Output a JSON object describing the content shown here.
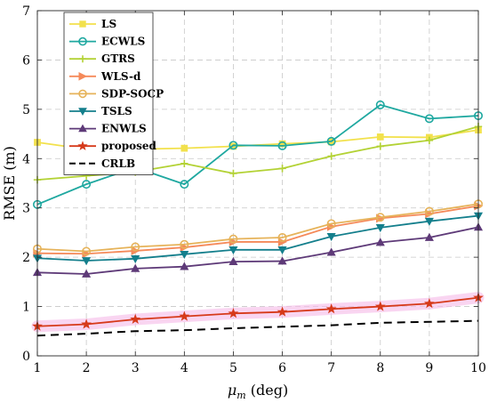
{
  "chart_data": {
    "type": "line",
    "xlabel_main": "μ",
    "xlabel_sub": "m",
    "xlabel_rest": " (deg)",
    "ylabel": "RMSE (m)",
    "x": [
      1,
      2,
      3,
      4,
      5,
      6,
      7,
      8,
      9,
      10
    ],
    "xlim": [
      1,
      10
    ],
    "ylim": [
      0,
      7
    ],
    "xticks": [
      "1",
      "2",
      "3",
      "4",
      "5",
      "6",
      "7",
      "8",
      "9",
      "10"
    ],
    "yticks": [
      "0",
      "1",
      "2",
      "3",
      "4",
      "5",
      "6",
      "7"
    ],
    "grid": true,
    "legend_position": "top-left",
    "series": [
      {
        "name": "LS",
        "color": "#f2e14c",
        "marker": "square",
        "dash": "solid",
        "values": [
          4.33,
          4.19,
          4.19,
          4.21,
          4.25,
          4.3,
          4.34,
          4.44,
          4.43,
          4.58
        ]
      },
      {
        "name": "ECWLS",
        "color": "#1fa8a0",
        "marker": "circle",
        "dash": "solid",
        "values": [
          3.07,
          3.48,
          3.82,
          3.48,
          4.27,
          4.26,
          4.35,
          5.09,
          4.81,
          4.87
        ]
      },
      {
        "name": "GTRS",
        "color": "#b3d235",
        "marker": "plus",
        "dash": "solid",
        "values": [
          3.57,
          3.65,
          3.73,
          3.9,
          3.7,
          3.8,
          4.05,
          4.25,
          4.37,
          4.65
        ]
      },
      {
        "name": "WLS-d",
        "color": "#f58a5a",
        "marker": "triangle-right",
        "dash": "solid",
        "values": [
          2.08,
          2.07,
          2.13,
          2.2,
          2.31,
          2.31,
          2.62,
          2.79,
          2.88,
          3.04
        ]
      },
      {
        "name": "SDP-SOCP",
        "color": "#e6b35a",
        "marker": "circle",
        "dash": "solid",
        "values": [
          2.17,
          2.12,
          2.21,
          2.26,
          2.37,
          2.4,
          2.68,
          2.81,
          2.93,
          3.08
        ]
      },
      {
        "name": "TSLS",
        "color": "#147f8c",
        "marker": "triangle-down",
        "dash": "solid",
        "values": [
          1.98,
          1.93,
          1.97,
          2.06,
          2.15,
          2.15,
          2.42,
          2.6,
          2.73,
          2.84
        ]
      },
      {
        "name": "ENWLS",
        "color": "#5e3a78",
        "marker": "triangle-up",
        "dash": "solid",
        "values": [
          1.69,
          1.66,
          1.77,
          1.81,
          1.91,
          1.92,
          2.1,
          2.3,
          2.4,
          2.61
        ]
      },
      {
        "name": "proposed",
        "color": "#d63a1a",
        "marker": "star",
        "dash": "solid",
        "values": [
          0.6,
          0.64,
          0.74,
          0.8,
          0.86,
          0.89,
          0.95,
          1.0,
          1.06,
          1.18
        ]
      },
      {
        "name": "CRLB",
        "color": "#000000",
        "marker": "none",
        "dash": "dashed",
        "values": [
          0.41,
          0.45,
          0.5,
          0.52,
          0.56,
          0.59,
          0.62,
          0.67,
          0.69,
          0.71
        ]
      }
    ]
  }
}
